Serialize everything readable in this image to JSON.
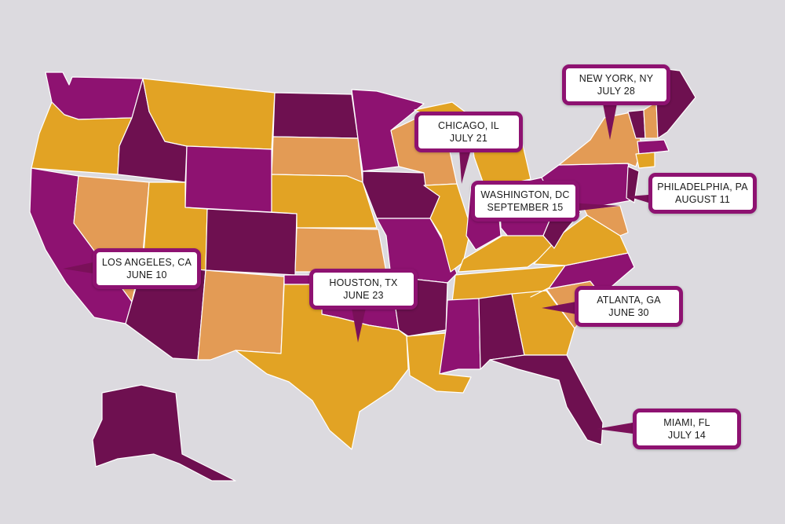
{
  "colors": {
    "background": "#dcdadf",
    "magenta": "#8e1271",
    "plum": "#6e1050",
    "gold": "#e2a324",
    "orange": "#e39b55",
    "callout_border": "#8e1271",
    "callout_fill": "#ffffff"
  },
  "callouts": [
    {
      "id": "new-york",
      "city": "NEW YORK, NY",
      "date": "JULY 28"
    },
    {
      "id": "chicago",
      "city": "CHICAGO, IL",
      "date": "JULY 21"
    },
    {
      "id": "washington",
      "city": "WASHINGTON, DC",
      "date": "SEPTEMBER 15"
    },
    {
      "id": "philadelphia",
      "city": "PHILADELPHIA, PA",
      "date": "AUGUST 11"
    },
    {
      "id": "los-angeles",
      "city": "LOS ANGELES, CA",
      "date": "JUNE 10"
    },
    {
      "id": "houston",
      "city": "HOUSTON, TX",
      "date": "JUNE 23"
    },
    {
      "id": "atlanta",
      "city": "ATLANTA, GA",
      "date": "JUNE 30"
    },
    {
      "id": "miami",
      "city": "MIAMI, FL",
      "date": "JULY 14"
    }
  ]
}
